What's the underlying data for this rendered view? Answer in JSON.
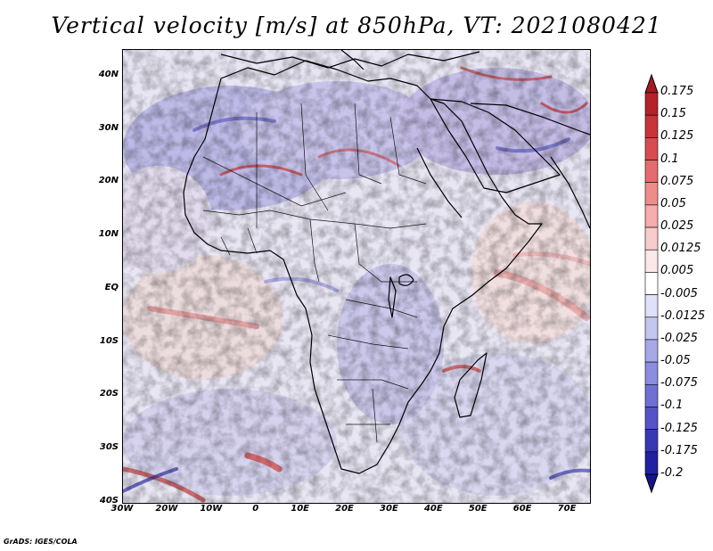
{
  "title": "Vertical velocity [m/s] at 850hPa, VT: 2021080421",
  "credit": "GrADS: IGES/COLA",
  "map": {
    "variable": "Vertical velocity",
    "units": "m/s",
    "level": "850hPa",
    "valid_time": "2021080421",
    "lon_range": [
      -30,
      75
    ],
    "lat_range": [
      -40,
      45
    ],
    "lat_ticks": [
      {
        "value": 40,
        "label": "40N"
      },
      {
        "value": 30,
        "label": "30N"
      },
      {
        "value": 20,
        "label": "20N"
      },
      {
        "value": 10,
        "label": "10N"
      },
      {
        "value": 0,
        "label": "EQ"
      },
      {
        "value": -10,
        "label": "10S"
      },
      {
        "value": -20,
        "label": "20S"
      },
      {
        "value": -30,
        "label": "30S"
      },
      {
        "value": -40,
        "label": "40S"
      }
    ],
    "lon_ticks": [
      {
        "value": -30,
        "label": "30W"
      },
      {
        "value": -20,
        "label": "20W"
      },
      {
        "value": -10,
        "label": "10W"
      },
      {
        "value": 0,
        "label": "0"
      },
      {
        "value": 10,
        "label": "10E"
      },
      {
        "value": 20,
        "label": "20E"
      },
      {
        "value": 30,
        "label": "30E"
      },
      {
        "value": 40,
        "label": "40E"
      },
      {
        "value": 50,
        "label": "50E"
      },
      {
        "value": 60,
        "label": "60E"
      },
      {
        "value": 70,
        "label": "70E"
      }
    ]
  },
  "colorbar": {
    "levels": [
      "0.175",
      "0.15",
      "0.125",
      "0.1",
      "0.075",
      "0.05",
      "0.025",
      "0.0125",
      "0.005",
      "-0.005",
      "-0.0125",
      "-0.025",
      "-0.05",
      "-0.075",
      "-0.1",
      "-0.125",
      "-0.175",
      "-0.2"
    ],
    "colors": [
      "#a01c20",
      "#b42328",
      "#c8343a",
      "#d84c50",
      "#e46c6e",
      "#ee8c8c",
      "#f4acac",
      "#f8cccc",
      "#fce8e8",
      "#ffffff",
      "#e0e0f8",
      "#c4c4f0",
      "#a8a8e8",
      "#8c8ce0",
      "#7070d4",
      "#5454c8",
      "#3838b4",
      "#2020a0",
      "#14148c"
    ]
  }
}
